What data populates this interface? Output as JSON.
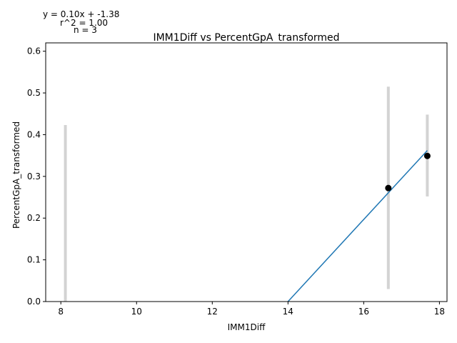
{
  "chart_data": {
    "type": "scatter",
    "title": "IMM1Diff vs PercentGpA_transformed",
    "xlabel": "IMM1Diff",
    "ylabel": "PercentGpA_transformed",
    "xlim": [
      7.6,
      18.2
    ],
    "ylim": [
      0.0,
      0.62
    ],
    "xticks": [
      8,
      10,
      12,
      14,
      16,
      18
    ],
    "yticks": [
      0.0,
      0.1,
      0.2,
      0.3,
      0.4,
      0.5,
      0.6
    ],
    "xtick_labels": [
      "8",
      "10",
      "12",
      "14",
      "16",
      "18"
    ],
    "ytick_labels": [
      "0.0",
      "0.1",
      "0.2",
      "0.3",
      "0.4",
      "0.5",
      "0.6"
    ],
    "grid": false,
    "points": [
      {
        "x": 16.65,
        "y": 0.272
      },
      {
        "x": 17.68,
        "y": 0.349
      }
    ],
    "error_bars": [
      {
        "x": 8.12,
        "low": 0.0,
        "high": 0.423
      },
      {
        "x": 16.65,
        "low": 0.03,
        "high": 0.515
      },
      {
        "x": 17.68,
        "low": 0.252,
        "high": 0.448
      }
    ],
    "fit_line": {
      "x": [
        14.0,
        17.68
      ],
      "y": [
        0.0,
        0.362
      ]
    },
    "colors": {
      "points": "#000000",
      "fit": "#1f77b4",
      "error_bars": "#d3d3d3",
      "axes": "#000000"
    },
    "annotation": {
      "equation": "y = 0.10x + -1.38",
      "r2": "r^2 = 1.00",
      "n": "n = 3"
    }
  }
}
